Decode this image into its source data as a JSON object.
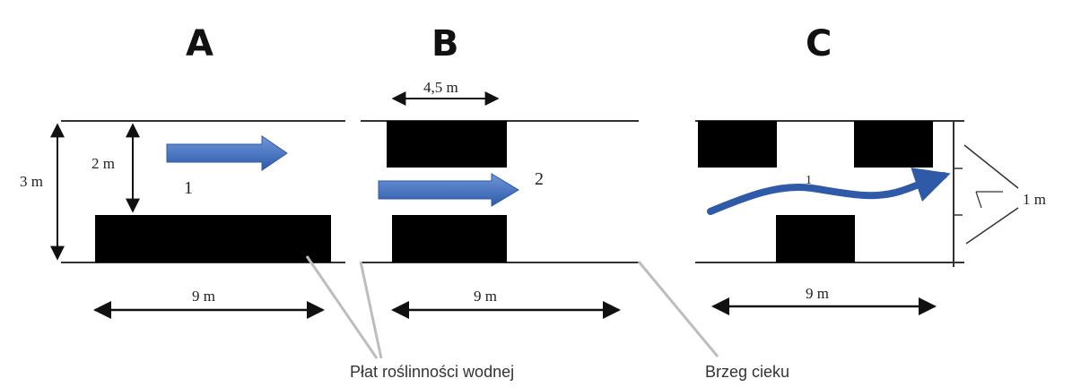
{
  "panels": [
    {
      "label": "A",
      "flow_number": "1",
      "dims": {
        "width": "9 m",
        "channel": "3 m",
        "gap": "2 m"
      }
    },
    {
      "label": "B",
      "flow_number": "2",
      "dims": {
        "width": "9 m",
        "patch": "4,5 m"
      }
    },
    {
      "label": "C",
      "flow_number": "1",
      "dims": {
        "width": "9 m",
        "spacing": "1 m"
      }
    }
  ],
  "captions": {
    "vegetation": "Płat roślinności wodnej",
    "bank": "Brzeg cieku"
  },
  "colors": {
    "flow_arrow": "#3f6fc4",
    "vegetation": "#000000",
    "bank_line": "#333333"
  }
}
